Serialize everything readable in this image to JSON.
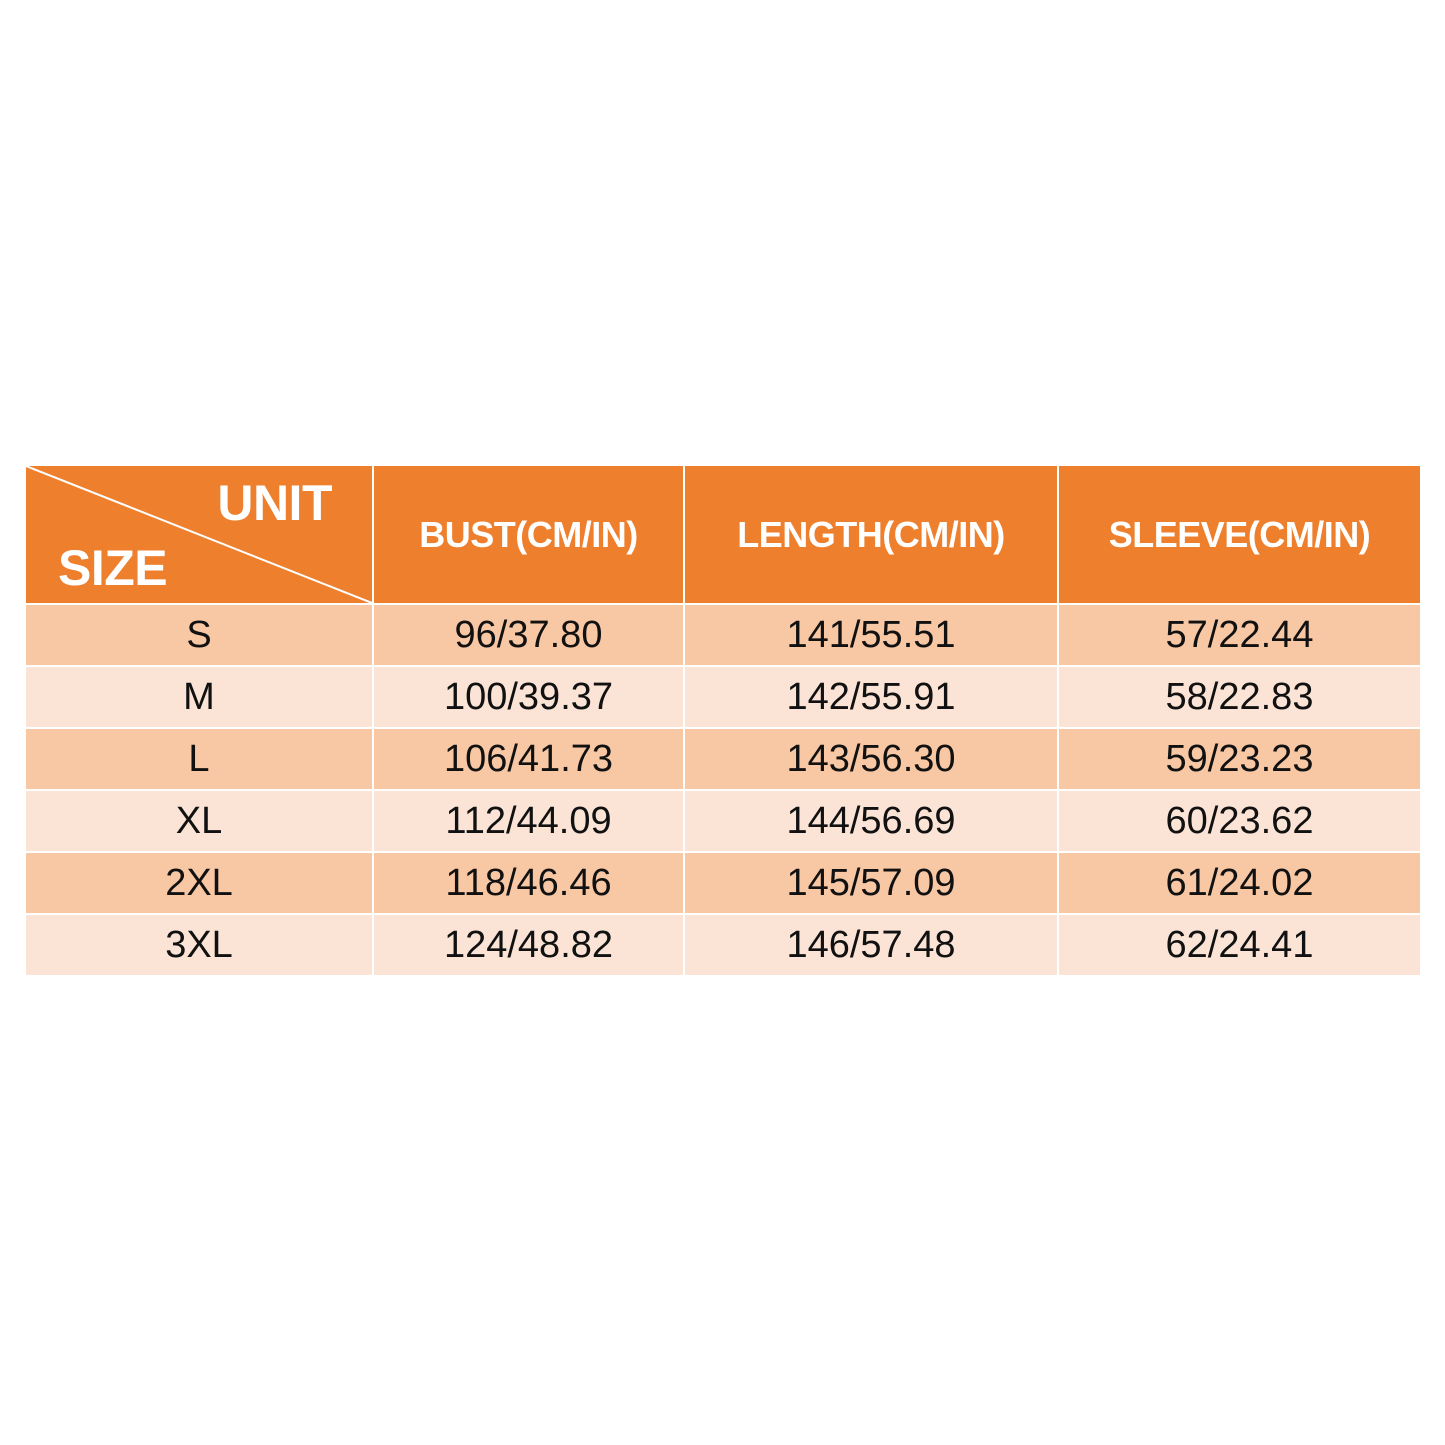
{
  "table": {
    "corner": {
      "top_label": "UNIT",
      "bottom_label": "SIZE"
    },
    "headers": [
      "BUST(CM/IN)",
      "LENGTH(CM/IN)",
      "SLEEVE(CM/IN)"
    ],
    "rows": [
      {
        "size": "S",
        "bust": "96/37.80",
        "length": "141/55.51",
        "sleeve": "57/22.44"
      },
      {
        "size": "M",
        "bust": "100/39.37",
        "length": "142/55.91",
        "sleeve": "58/22.83"
      },
      {
        "size": "L",
        "bust": "106/41.73",
        "length": "143/56.30",
        "sleeve": "59/23.23"
      },
      {
        "size": "XL",
        "bust": "112/44.09",
        "length": "144/56.69",
        "sleeve": "60/23.62"
      },
      {
        "size": "2XL",
        "bust": "118/46.46",
        "length": "145/57.09",
        "sleeve": "61/24.02"
      },
      {
        "size": "3XL",
        "bust": "124/48.82",
        "length": "146/57.48",
        "sleeve": "62/24.41"
      }
    ]
  },
  "colors": {
    "header": "#ee7f2d",
    "row_dark": "#f8c7a4",
    "row_light": "#fbe4d6"
  }
}
